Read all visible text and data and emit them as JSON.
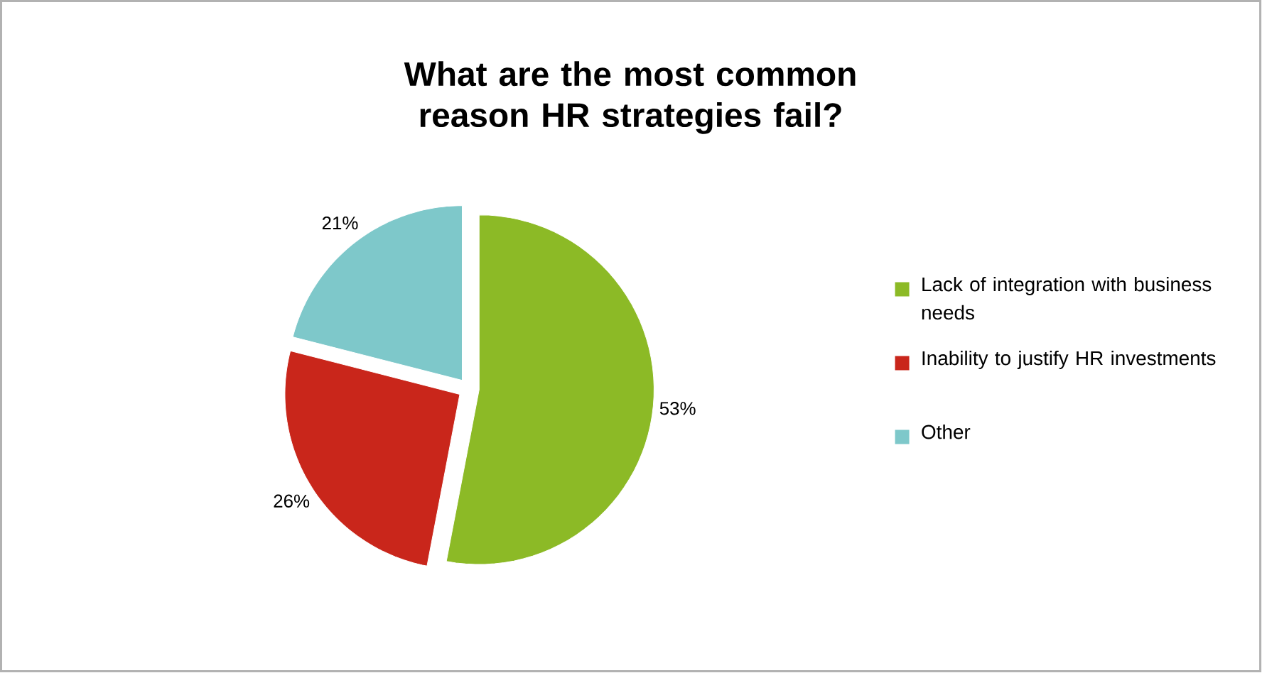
{
  "chart_data": {
    "type": "pie",
    "title": "What are the most common reason HR strategies fail?",
    "categories": [
      "Lack of integration with business needs",
      "Inability to justify HR investments",
      "Other"
    ],
    "values": [
      53,
      26,
      21
    ],
    "colors": [
      "#8cba26",
      "#c9261b",
      "#7ec8ca"
    ],
    "value_labels": [
      "53%",
      "26%",
      "21%"
    ],
    "legend": "right"
  }
}
